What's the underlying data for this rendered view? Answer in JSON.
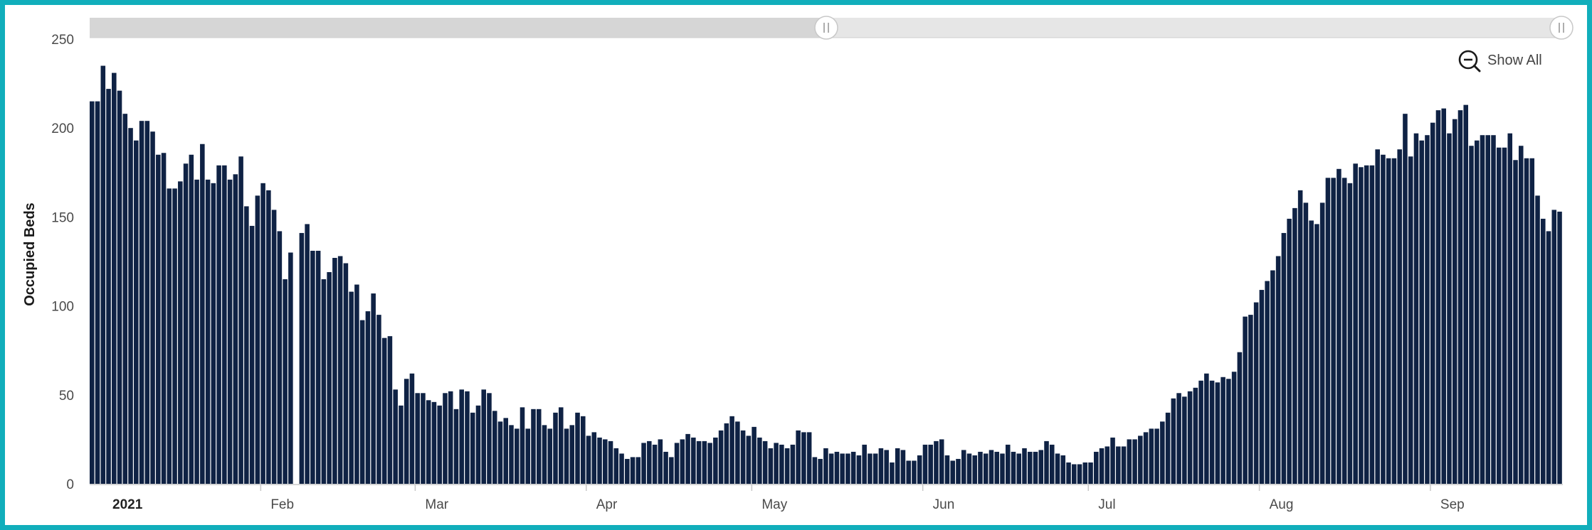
{
  "colors": {
    "frame": "#11aebb",
    "bar": "#0f2244",
    "scroll_track": "#e6e6e6",
    "scroll_selected": "#d6d6d6"
  },
  "zoom_button": {
    "label": "Show All",
    "icon": "zoom-out-icon"
  },
  "scrollbar": {
    "selected_fraction": [
      0,
      0.5
    ],
    "handle_icon": "drag-handle-icon"
  },
  "chart_data": {
    "type": "bar",
    "title": "",
    "xlabel": "",
    "ylabel": "Occupied Beds",
    "ylim": [
      0,
      250
    ],
    "y_ticks": [
      0,
      50,
      100,
      150,
      200,
      250
    ],
    "x_start": "2021-01-01",
    "x_tick_labels": [
      {
        "date": "2021-01-01",
        "label": "2021"
      },
      {
        "date": "2021-02-01",
        "label": "Feb"
      },
      {
        "date": "2021-03-01",
        "label": "Mar"
      },
      {
        "date": "2021-04-01",
        "label": "Apr"
      },
      {
        "date": "2021-05-01",
        "label": "May"
      },
      {
        "date": "2021-06-01",
        "label": "Jun"
      },
      {
        "date": "2021-07-01",
        "label": "Jul"
      },
      {
        "date": "2021-08-01",
        "label": "Aug"
      },
      {
        "date": "2021-09-01",
        "label": "Sep"
      }
    ],
    "grid": false,
    "legend": "none",
    "series": [
      {
        "values": [
          215,
          215,
          235,
          222,
          231,
          221,
          208,
          200,
          193,
          204,
          204,
          198,
          185,
          186,
          166,
          166,
          170,
          180,
          185,
          171,
          191,
          171,
          169,
          179,
          179,
          171,
          174,
          184,
          156,
          145,
          162,
          169,
          165,
          154,
          142,
          115,
          130,
          0,
          141,
          146,
          131,
          131,
          115,
          119,
          127,
          128,
          124,
          108,
          112,
          92,
          97,
          107,
          95,
          82,
          83,
          53,
          44,
          59,
          62,
          51,
          51,
          47,
          46,
          44,
          51,
          52,
          42,
          53,
          52,
          40,
          44,
          53,
          51,
          41,
          35,
          37,
          33,
          31,
          43,
          31,
          42,
          42,
          33,
          31,
          40,
          43,
          31,
          33,
          40,
          38,
          27,
          29,
          26,
          25,
          24,
          20,
          17,
          14,
          15,
          15,
          23,
          24,
          22,
          25,
          18,
          15,
          23,
          25,
          28,
          26,
          24,
          24,
          23,
          26,
          30,
          34,
          38,
          35,
          30,
          27,
          32,
          26,
          24,
          20,
          23,
          22,
          20,
          22,
          30,
          29,
          29,
          15,
          14,
          20,
          17,
          18,
          17,
          17,
          18,
          16,
          22,
          17,
          17,
          20,
          19,
          12,
          20,
          19,
          13,
          13,
          16,
          22,
          22,
          24,
          25,
          16,
          13,
          14,
          19,
          17,
          16,
          18,
          17,
          19,
          18,
          17,
          22,
          18,
          17,
          20,
          18,
          18,
          19,
          24,
          22,
          17,
          16,
          12,
          11,
          11,
          12,
          12,
          18,
          20,
          21,
          26,
          21,
          21,
          25,
          25,
          27,
          29,
          31,
          31,
          35,
          40,
          48,
          51,
          49,
          52,
          54,
          58,
          62,
          58,
          57,
          60,
          59,
          63,
          74,
          94,
          95,
          102,
          109,
          114,
          120,
          128,
          141,
          149,
          155,
          165,
          158,
          148,
          146,
          158,
          172,
          172,
          177,
          172,
          169,
          180,
          178,
          179,
          179,
          188,
          185,
          183,
          183,
          188,
          208,
          184,
          197,
          193,
          196,
          203,
          210,
          211,
          197,
          205,
          210,
          213,
          190,
          193,
          196,
          196,
          196,
          189,
          189,
          197,
          182,
          190,
          183,
          183,
          162,
          149,
          142,
          154,
          153
        ]
      }
    ]
  }
}
